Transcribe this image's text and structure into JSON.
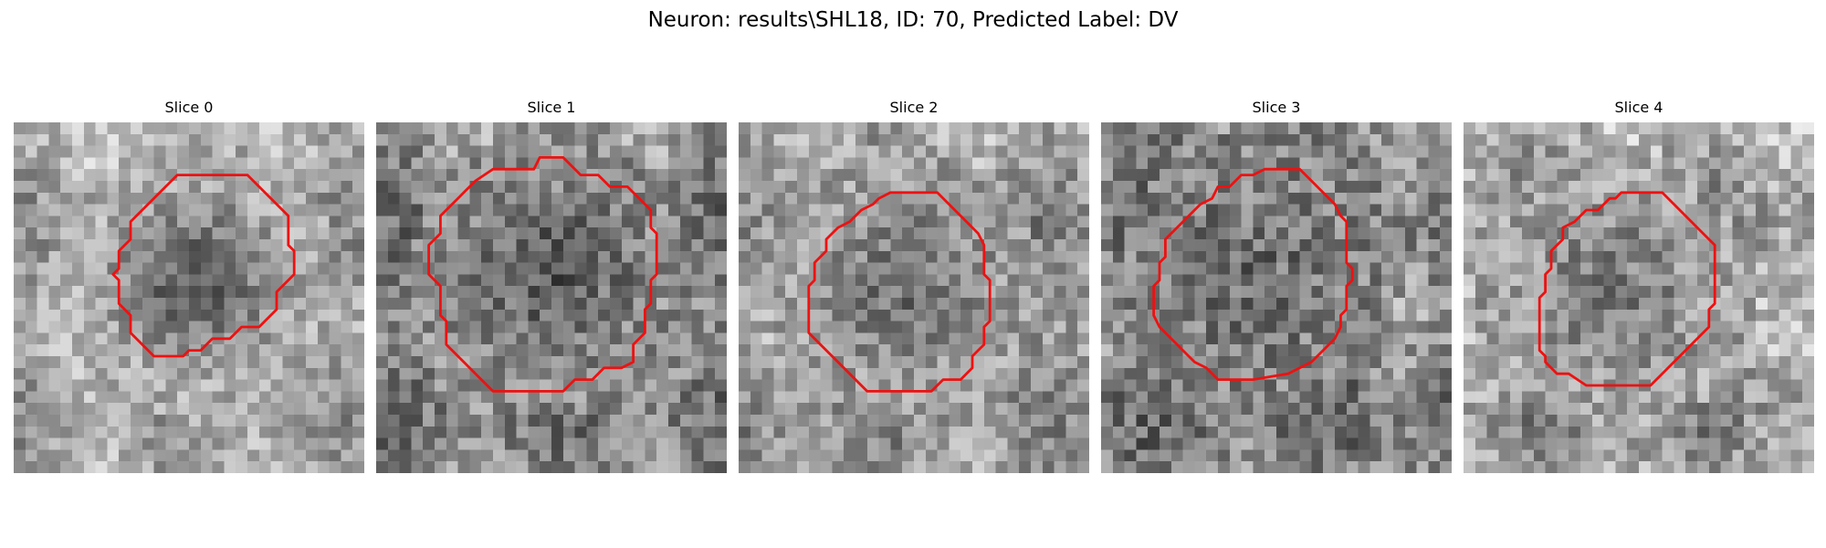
{
  "figure": {
    "title": "Neuron: results\\SHL18, ID: 70, Predicted Label: DV"
  },
  "contour_color": "#ee1111",
  "panels": [
    {
      "title": "Slice 0",
      "mean_gray": 172,
      "noise": 42,
      "dark_core": 0.55,
      "seed": 11,
      "contour": [
        [
          16,
          4.5
        ],
        [
          20,
          4.5
        ],
        [
          23.5,
          8
        ],
        [
          23.5,
          10.5
        ],
        [
          24,
          11
        ],
        [
          24,
          13
        ],
        [
          22.5,
          14.5
        ],
        [
          22.5,
          16
        ],
        [
          21,
          17.5
        ],
        [
          19.5,
          17.5
        ],
        [
          18.5,
          18.5
        ],
        [
          17,
          18.5
        ],
        [
          16,
          19.5
        ],
        [
          15,
          19.5
        ],
        [
          14.5,
          20
        ],
        [
          12,
          20
        ],
        [
          10,
          18
        ],
        [
          10,
          16.5
        ],
        [
          9,
          15.5
        ],
        [
          9,
          13.5
        ],
        [
          8.5,
          13
        ],
        [
          9,
          12.5
        ],
        [
          9,
          11
        ],
        [
          10,
          10
        ],
        [
          10,
          8.5
        ],
        [
          14,
          4.5
        ]
      ]
    },
    {
      "title": "Slice 1",
      "mean_gray": 140,
      "noise": 48,
      "dark_core": 0.42,
      "seed": 23,
      "contour": [
        [
          14,
          3
        ],
        [
          16,
          3
        ],
        [
          17.5,
          4.5
        ],
        [
          19,
          4.5
        ],
        [
          20,
          5.5
        ],
        [
          21.5,
          5.5
        ],
        [
          23,
          7
        ],
        [
          23.5,
          7.5
        ],
        [
          23.5,
          9
        ],
        [
          24,
          9.5
        ],
        [
          24,
          13
        ],
        [
          23.5,
          13.5
        ],
        [
          23.5,
          15.5
        ],
        [
          23,
          16
        ],
        [
          23,
          18
        ],
        [
          22,
          19
        ],
        [
          22,
          20.5
        ],
        [
          21,
          21
        ],
        [
          19.5,
          21
        ],
        [
          18.5,
          22
        ],
        [
          17,
          22
        ],
        [
          16,
          23
        ],
        [
          10,
          23
        ],
        [
          8.5,
          21.5
        ],
        [
          7,
          20
        ],
        [
          6,
          19
        ],
        [
          6,
          17
        ],
        [
          5.5,
          16.5
        ],
        [
          5.5,
          14
        ],
        [
          4.5,
          13
        ],
        [
          4.5,
          10.5
        ],
        [
          5.5,
          9.5
        ],
        [
          5.5,
          8
        ],
        [
          7,
          6.5
        ],
        [
          8.5,
          5
        ],
        [
          10,
          4
        ],
        [
          13.5,
          4
        ]
      ]
    },
    {
      "title": "Slice 2",
      "mean_gray": 158,
      "noise": 45,
      "dark_core": 0.34,
      "seed": 37,
      "contour": [
        [
          13,
          6
        ],
        [
          17,
          6
        ],
        [
          18.5,
          7.5
        ],
        [
          19.5,
          8.5
        ],
        [
          20.5,
          9.5
        ],
        [
          21,
          10.5
        ],
        [
          21,
          13
        ],
        [
          21.5,
          13.5
        ],
        [
          21.5,
          17
        ],
        [
          21,
          17.5
        ],
        [
          21,
          19
        ],
        [
          20,
          20
        ],
        [
          20,
          21
        ],
        [
          19,
          22
        ],
        [
          17.5,
          22
        ],
        [
          16.5,
          23
        ],
        [
          11,
          23
        ],
        [
          10,
          22
        ],
        [
          9,
          21
        ],
        [
          6,
          18
        ],
        [
          6,
          14
        ],
        [
          6.5,
          13.5
        ],
        [
          6.5,
          12
        ],
        [
          7.5,
          11
        ],
        [
          7.5,
          10
        ],
        [
          8.5,
          9
        ],
        [
          9.5,
          8.5
        ],
        [
          10.5,
          7.5
        ],
        [
          11.5,
          7
        ],
        [
          12,
          6.5
        ]
      ]
    },
    {
      "title": "Slice 3",
      "mean_gray": 132,
      "noise": 52,
      "dark_core": 0.2,
      "seed": 53,
      "contour": [
        [
          14,
          4
        ],
        [
          17,
          4
        ],
        [
          18,
          5
        ],
        [
          19.5,
          6.5
        ],
        [
          20,
          7
        ],
        [
          20.5,
          8
        ],
        [
          21,
          8.5
        ],
        [
          21,
          12
        ],
        [
          21.5,
          12.5
        ],
        [
          21.5,
          13.5
        ],
        [
          21,
          14
        ],
        [
          21,
          16
        ],
        [
          20.5,
          16.5
        ],
        [
          20.5,
          17.5
        ],
        [
          20,
          18.5
        ],
        [
          19,
          19.5
        ],
        [
          18,
          20.5
        ],
        [
          17,
          21
        ],
        [
          16,
          21.5
        ],
        [
          13,
          22
        ],
        [
          10,
          22
        ],
        [
          9,
          21
        ],
        [
          8,
          20.5
        ],
        [
          7,
          19.5
        ],
        [
          6,
          18.5
        ],
        [
          5,
          17.5
        ],
        [
          4.5,
          16.5
        ],
        [
          4.5,
          14
        ],
        [
          5,
          13.5
        ],
        [
          5,
          12
        ],
        [
          5.5,
          11.5
        ],
        [
          5.5,
          10
        ],
        [
          6.5,
          9
        ],
        [
          7.5,
          8
        ],
        [
          8.5,
          7
        ],
        [
          9.5,
          6.5
        ],
        [
          10,
          5.5
        ],
        [
          11,
          5.5
        ],
        [
          12,
          4.5
        ],
        [
          13,
          4.5
        ]
      ]
    },
    {
      "title": "Slice 4",
      "mean_gray": 162,
      "noise": 48,
      "dark_core": 0.28,
      "seed": 71,
      "contour": [
        [
          13.5,
          6
        ],
        [
          17,
          6
        ],
        [
          19,
          8
        ],
        [
          20.5,
          9.5
        ],
        [
          21.5,
          10.5
        ],
        [
          21.5,
          15.5
        ],
        [
          21,
          16
        ],
        [
          21,
          17.5
        ],
        [
          20,
          18.5
        ],
        [
          19,
          19.5
        ],
        [
          18,
          20.5
        ],
        [
          17,
          21.5
        ],
        [
          16,
          22.5
        ],
        [
          10.5,
          22.5
        ],
        [
          9,
          21.5
        ],
        [
          8,
          21.5
        ],
        [
          7.5,
          21
        ],
        [
          7,
          20.5
        ],
        [
          7,
          20
        ],
        [
          6.5,
          19.5
        ],
        [
          6.5,
          15
        ],
        [
          7,
          14.5
        ],
        [
          7,
          13
        ],
        [
          7.5,
          12.5
        ],
        [
          7.5,
          11
        ],
        [
          8.5,
          10
        ],
        [
          8.5,
          9
        ],
        [
          9.5,
          8.5
        ],
        [
          10.5,
          7.5
        ],
        [
          11.5,
          7.5
        ],
        [
          12.5,
          6.5
        ],
        [
          13,
          6.5
        ]
      ]
    }
  ]
}
